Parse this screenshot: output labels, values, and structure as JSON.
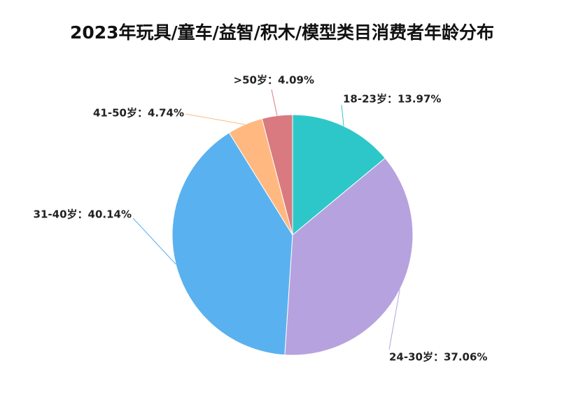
{
  "chart_data": {
    "type": "pie",
    "title": "2023年玩具/童车/益智/积木/模型类目消费者年龄分布",
    "categories": [
      "18-23岁",
      "24-30岁",
      "31-40岁",
      "41-50岁",
      ">50岁"
    ],
    "values": [
      13.97,
      37.06,
      40.14,
      4.74,
      4.09
    ],
    "value_labels": [
      "18-23岁：13.97%",
      "24-30岁：37.06%",
      "31-40岁：40.14%",
      "41-50岁：4.74%",
      ">50岁：4.09%"
    ],
    "colors": [
      "#2ec7c9",
      "#b6a2de",
      "#5ab1ef",
      "#ffb980",
      "#d87a80"
    ]
  }
}
